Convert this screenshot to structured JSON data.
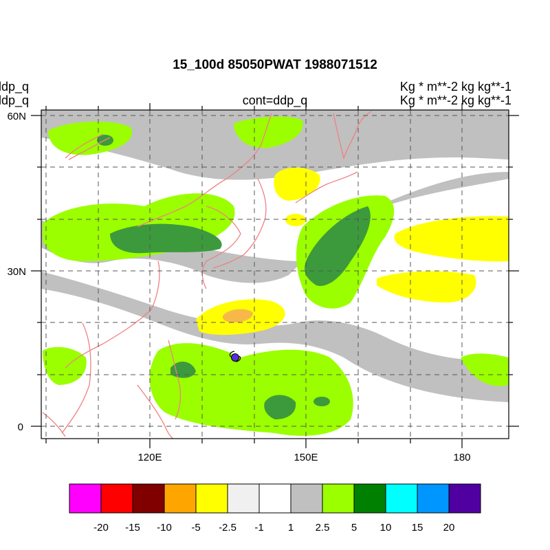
{
  "title": "15_100d 85050PWAT  1988071512",
  "left_labels": [
    "ddp_q",
    "ddp_q"
  ],
  "right_labels": [
    "Kg  * m**-2 kg kg**-1",
    "Kg  * m**-2 kg kg**-1"
  ],
  "center_label": "cont=ddp_q",
  "axes": {
    "lat_ticks": [
      "60N",
      "30N",
      "0"
    ],
    "lon_ticks": [
      "120E",
      "150E",
      "180"
    ]
  },
  "colorbar": {
    "colors": [
      "#ff00ff",
      "#ff0000",
      "#800000",
      "#ffa500",
      "#ffff00",
      "#f0f0f0",
      "#ffffff",
      "#c0c0c0",
      "#9bff00",
      "#008000",
      "#00ffff",
      "#0096ff",
      "#5000a0"
    ],
    "labels": [
      "-20",
      "-15",
      "-10",
      "-5",
      "-2.5",
      "-1",
      "1",
      "2.5",
      "5",
      "10",
      "15",
      "20"
    ]
  },
  "colors": {
    "coastline": "#f08080",
    "grid": "#555555",
    "typhoon_marker": "#5a2de0"
  }
}
